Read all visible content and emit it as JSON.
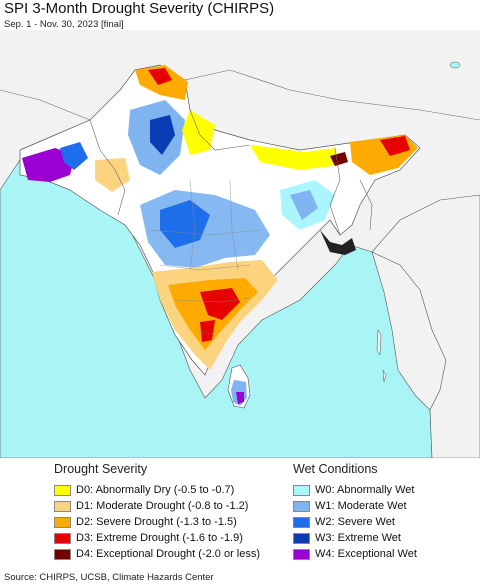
{
  "header": {
    "title": "SPI 3-Month Drought Severity (CHIRPS)",
    "subtitle": "Sep. 1 - Nov. 30, 2023 [final]"
  },
  "map": {
    "ocean_color": "#a9f4f4",
    "land_color": "#f2f2f2",
    "region_color": "#ffffff"
  },
  "legend": {
    "drought": {
      "heading": "Drought Severity",
      "items": [
        {
          "label": "D0: Abnormally Dry (-0.5 to -0.7)",
          "color": "#ffff00"
        },
        {
          "label": "D1: Moderate Drought (-0.8 to -1.2)",
          "color": "#fcd37f"
        },
        {
          "label": "D2: Severe Drought (-1.3 to -1.5)",
          "color": "#ffaa00"
        },
        {
          "label": "D3: Extreme Drought (-1.6 to -1.9)",
          "color": "#e60000"
        },
        {
          "label": "D4: Exceptional Drought (-2.0 or less)",
          "color": "#730000"
        }
      ]
    },
    "wet": {
      "heading": "Wet Conditions",
      "items": [
        {
          "label": "W0: Abnormally Wet",
          "color": "#aaf5ff"
        },
        {
          "label": "W1: Moderate Wet",
          "color": "#7fb4f0"
        },
        {
          "label": "W2: Severe Wet",
          "color": "#1e6eeb"
        },
        {
          "label": "W3: Extreme Wet",
          "color": "#0a3cb4"
        },
        {
          "label": "W4: Exceptional Wet",
          "color": "#9b00d2"
        }
      ]
    }
  },
  "footer": {
    "source": "Source: CHIRPS, UCSB, Climate Hazards Center"
  }
}
